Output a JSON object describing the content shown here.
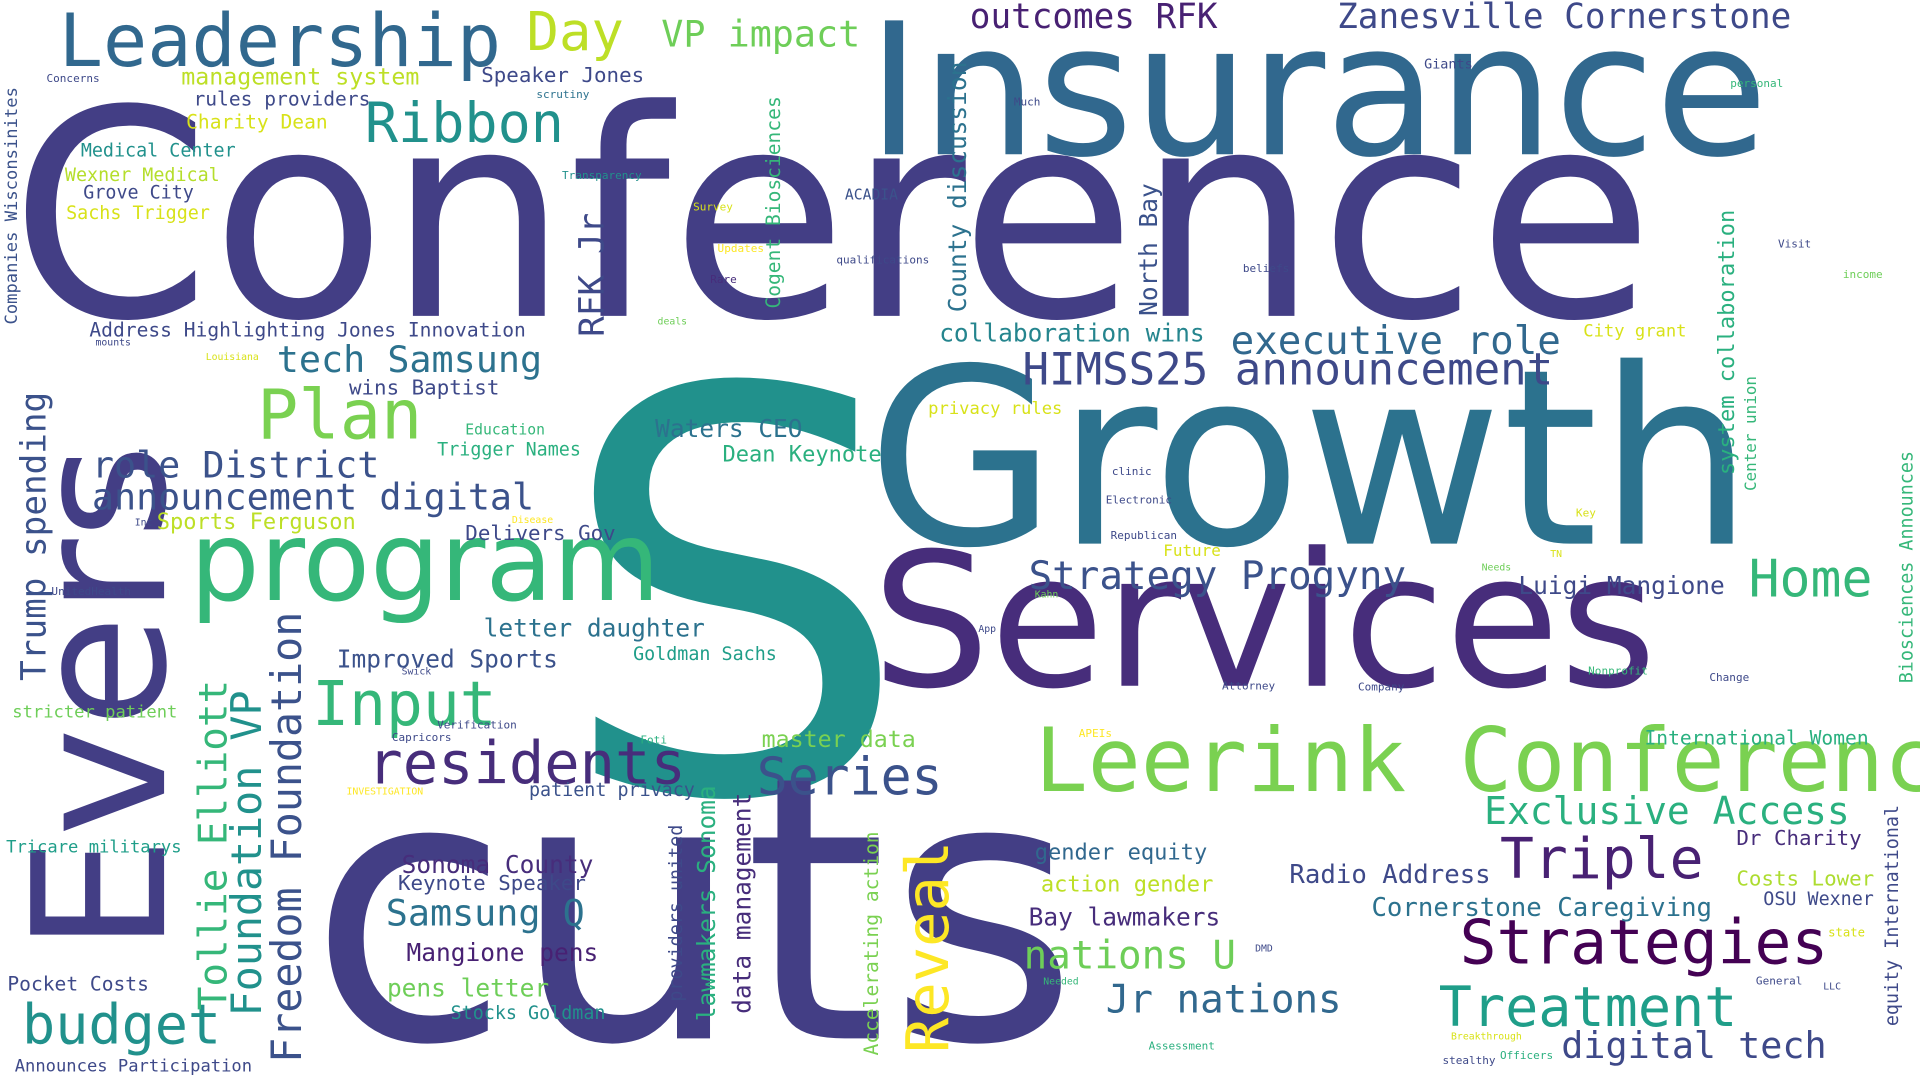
{
  "words": [
    {
      "text": "S",
      "color": "#21918c"
    },
    {
      "text": "Conference",
      "color": "#433e85"
    },
    {
      "text": "cuts",
      "color": "#433e85"
    },
    {
      "text": "Growth",
      "color": "#2c728e"
    },
    {
      "text": "Insurance",
      "color": "#31688e"
    },
    {
      "text": "Services",
      "color": "#472d7b"
    },
    {
      "text": "Evers",
      "color": "#433e85"
    },
    {
      "text": "program",
      "color": "#35b779"
    },
    {
      "text": "Leerink Conference",
      "color": "#7ad151"
    },
    {
      "text": "Leadership",
      "color": "#31688e"
    },
    {
      "text": "Strategies",
      "color": "#440154"
    },
    {
      "text": "Reveal",
      "color": "#fde725"
    },
    {
      "text": "residents",
      "color": "#472d7b"
    },
    {
      "text": "Plan",
      "color": "#7ad151"
    },
    {
      "text": "Input",
      "color": "#35b779"
    },
    {
      "text": "budget",
      "color": "#21918c"
    },
    {
      "text": "Treatment",
      "color": "#1f9e89"
    },
    {
      "text": "Triple",
      "color": "#482173"
    },
    {
      "text": "Ribbon",
      "color": "#21918c"
    },
    {
      "text": "Series",
      "color": "#3b528b"
    },
    {
      "text": "Day",
      "color": "#bddf26"
    },
    {
      "text": "Home",
      "color": "#35b779"
    },
    {
      "text": "HIMSS25 announcement",
      "color": "#3e4989"
    },
    {
      "text": "Freedom Foundation",
      "color": "#3b528b"
    },
    {
      "text": "Foundation VP",
      "color": "#21918c"
    },
    {
      "text": "Tollie Elliott",
      "color": "#35b779"
    },
    {
      "text": "executive role",
      "color": "#31688e"
    },
    {
      "text": "Exclusive Access",
      "color": "#2ab07f"
    },
    {
      "text": "nations U",
      "color": "#6ece58"
    },
    {
      "text": "Jr nations",
      "color": "#31688e"
    },
    {
      "text": "digital tech",
      "color": "#3e4989"
    },
    {
      "text": "Samsung Q",
      "color": "#2c728e"
    },
    {
      "text": "Strategy Progyny",
      "color": "#3b528b"
    },
    {
      "text": "tech Samsung",
      "color": "#2c728e"
    },
    {
      "text": "announcement digital",
      "color": "#3b528b"
    },
    {
      "text": "role District",
      "color": "#3b528b"
    },
    {
      "text": "Trump spending",
      "color": "#3b528b"
    },
    {
      "text": "outcomes RFK",
      "color": "#482173"
    },
    {
      "text": "Zanesville Cornerstone",
      "color": "#3e4989"
    },
    {
      "text": "VP impact",
      "color": "#6ece58"
    },
    {
      "text": "RFK Jr",
      "color": "#3e4989"
    },
    {
      "text": "County discussion",
      "color": "#2c728e"
    },
    {
      "text": "North Bay",
      "color": "#3b528b"
    },
    {
      "text": "Cogent Biosciences",
      "color": "#35b779"
    },
    {
      "text": "system collaboration",
      "color": "#2ab07f"
    },
    {
      "text": "collaboration wins",
      "color": "#25858e"
    },
    {
      "text": "Luigi Mangione",
      "color": "#3e4989"
    },
    {
      "text": "Waters CEO",
      "color": "#2c728e"
    },
    {
      "text": "Dean Keynote",
      "color": "#2ab07f"
    },
    {
      "text": "Delivers Gov",
      "color": "#3e4989"
    },
    {
      "text": "letter daughter",
      "color": "#2c728e"
    },
    {
      "text": "Improved Sports",
      "color": "#3b528b"
    },
    {
      "text": "Goldman Sachs",
      "color": "#1f9e89"
    },
    {
      "text": "master data",
      "color": "#7ad151"
    },
    {
      "text": "patient privacy",
      "color": "#3b528b"
    },
    {
      "text": "lawmakers Sonoma",
      "color": "#2ab07f"
    },
    {
      "text": "data management",
      "color": "#472d7b"
    },
    {
      "text": "providers united",
      "color": "#3e4989"
    },
    {
      "text": "Accelerating action",
      "color": "#7ad151"
    },
    {
      "text": "Sonoma County",
      "color": "#472d7b"
    },
    {
      "text": "Keynote Speaker",
      "color": "#3e4989"
    },
    {
      "text": "Mangione pens",
      "color": "#482173"
    },
    {
      "text": "pens letter",
      "color": "#6ece58"
    },
    {
      "text": "Stocks Goldman",
      "color": "#21918c"
    },
    {
      "text": "gender equity",
      "color": "#31688e"
    },
    {
      "text": "action gender",
      "color": "#bddf26"
    },
    {
      "text": "Bay lawmakers",
      "color": "#472d7b"
    },
    {
      "text": "Radio Address",
      "color": "#3e4989"
    },
    {
      "text": "Cornerstone Caregiving",
      "color": "#2c728e"
    },
    {
      "text": "Dr Charity",
      "color": "#472d7b"
    },
    {
      "text": "Costs Lower",
      "color": "#addc30"
    },
    {
      "text": "OSU Wexner",
      "color": "#3e4989"
    },
    {
      "text": "International Women",
      "color": "#2ab07f"
    },
    {
      "text": "Biosciences Announces",
      "color": "#35b779"
    },
    {
      "text": "equity International",
      "color": "#3e4989"
    },
    {
      "text": "management system",
      "color": "#bddf26"
    },
    {
      "text": "Speaker Jones",
      "color": "#3e4989"
    },
    {
      "text": "rules providers",
      "color": "#3e4989"
    },
    {
      "text": "Charity Dean",
      "color": "#d8e219"
    },
    {
      "text": "Medical Center",
      "color": "#21918c"
    },
    {
      "text": "Wexner Medical",
      "color": "#b5de2b"
    },
    {
      "text": "Grove City",
      "color": "#3e4989"
    },
    {
      "text": "Sachs Trigger",
      "color": "#d8e219"
    },
    {
      "text": "Companies Wisconsinites",
      "color": "#3b528b"
    },
    {
      "text": "Address Highlighting Jones Innovation",
      "color": "#3e4989"
    },
    {
      "text": "wins Baptist",
      "color": "#3e4989"
    },
    {
      "text": "Sports Ferguson",
      "color": "#bddf26"
    },
    {
      "text": "Education",
      "color": "#35b779"
    },
    {
      "text": "Trigger Names",
      "color": "#2ab07f"
    },
    {
      "text": "stricter patient",
      "color": "#6ece58"
    },
    {
      "text": "Tricare militarys",
      "color": "#1f9e89"
    },
    {
      "text": "Pocket Costs",
      "color": "#3e4989"
    },
    {
      "text": "Announces Participation",
      "color": "#3e4989"
    },
    {
      "text": "City grant",
      "color": "#d8e219"
    },
    {
      "text": "privacy rules",
      "color": "#d8e219"
    },
    {
      "text": "Center union",
      "color": "#35b779"
    },
    {
      "text": "Concerns",
      "color": "#3e4989"
    },
    {
      "text": "scrutiny",
      "color": "#2c728e"
    },
    {
      "text": "Transparency",
      "color": "#21918c"
    },
    {
      "text": "Survey",
      "color": "#d8e219"
    },
    {
      "text": "Updates",
      "color": "#fde725"
    },
    {
      "text": "Rare",
      "color": "#472d7b"
    },
    {
      "text": "ACADIA",
      "color": "#3b528b"
    },
    {
      "text": "qualifications",
      "color": "#3e4989"
    },
    {
      "text": "Much",
      "color": "#3e4989"
    },
    {
      "text": "Giants",
      "color": "#3e4989"
    },
    {
      "text": "personal",
      "color": "#35b779"
    },
    {
      "text": "Visit",
      "color": "#3e4989"
    },
    {
      "text": "income",
      "color": "#6ece58"
    },
    {
      "text": "beliefs",
      "color": "#3e4989"
    },
    {
      "text": "deals",
      "color": "#6ece58"
    },
    {
      "text": "mounts",
      "color": "#3e4989"
    },
    {
      "text": "Louisiana",
      "color": "#d8e219"
    },
    {
      "text": "Inc",
      "color": "#3e4989"
    },
    {
      "text": "Disease",
      "color": "#fde725"
    },
    {
      "text": "UnitedHealth",
      "color": "#3e4989"
    },
    {
      "text": "Swick",
      "color": "#3e4989"
    },
    {
      "text": "Verification",
      "color": "#3e4989"
    },
    {
      "text": "Capricors",
      "color": "#3e4989"
    },
    {
      "text": "INVESTIGATION",
      "color": "#fde725"
    },
    {
      "text": "Foti",
      "color": "#2ab07f"
    },
    {
      "text": "APEIs",
      "color": "#fde725"
    },
    {
      "text": "clinic",
      "color": "#3e4989"
    },
    {
      "text": "Electronic",
      "color": "#3e4989"
    },
    {
      "text": "Republican",
      "color": "#3e4989"
    },
    {
      "text": "Future",
      "color": "#d8e219"
    },
    {
      "text": "Kahn",
      "color": "#6ece58"
    },
    {
      "text": "App",
      "color": "#3e4989"
    },
    {
      "text": "Key",
      "color": "#d8e219"
    },
    {
      "text": "TN",
      "color": "#d8e219"
    },
    {
      "text": "Needs",
      "color": "#6ece58"
    },
    {
      "text": "Nonprofit",
      "color": "#35b779"
    },
    {
      "text": "Change",
      "color": "#3e4989"
    },
    {
      "text": "Attorney",
      "color": "#3e4989"
    },
    {
      "text": "Company",
      "color": "#3e4989"
    },
    {
      "text": "DMD",
      "color": "#3e4989"
    },
    {
      "text": "state",
      "color": "#d8e219"
    },
    {
      "text": "Needed",
      "color": "#35b779"
    },
    {
      "text": "General",
      "color": "#3e4989"
    },
    {
      "text": "LLC",
      "color": "#3e4989"
    },
    {
      "text": "Breakthrough",
      "color": "#d8e219"
    },
    {
      "text": "Assessment",
      "color": "#2ab07f"
    },
    {
      "text": "stealthy",
      "color": "#3e4989"
    },
    {
      "text": "Officers",
      "color": "#2ab07f"
    }
  ]
}
